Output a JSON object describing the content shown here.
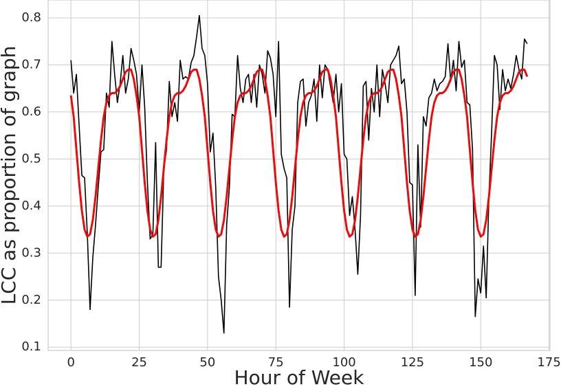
{
  "chart_data": {
    "type": "line",
    "x_label": "Hour of Week",
    "y_label": "LCC as proportion of graph",
    "x": [
      0,
      1,
      2,
      3,
      4,
      5,
      6,
      7,
      8,
      9,
      10,
      11,
      12,
      13,
      14,
      15,
      16,
      17,
      18,
      19,
      20,
      21,
      22,
      23,
      24,
      25,
      26,
      27,
      28,
      29,
      30,
      31,
      32,
      33,
      34,
      35,
      36,
      37,
      38,
      39,
      40,
      41,
      42,
      43,
      44,
      45,
      46,
      47,
      48,
      49,
      50,
      51,
      52,
      53,
      54,
      55,
      56,
      57,
      58,
      59,
      60,
      61,
      62,
      63,
      64,
      65,
      66,
      67,
      68,
      69,
      70,
      71,
      72,
      73,
      74,
      75,
      76,
      77,
      78,
      79,
      80,
      81,
      82,
      83,
      84,
      85,
      86,
      87,
      88,
      89,
      90,
      91,
      92,
      93,
      94,
      95,
      96,
      97,
      98,
      99,
      100,
      101,
      102,
      103,
      104,
      105,
      106,
      107,
      108,
      109,
      110,
      111,
      112,
      113,
      114,
      115,
      116,
      117,
      118,
      119,
      120,
      121,
      122,
      123,
      124,
      125,
      126,
      127,
      128,
      129,
      130,
      131,
      132,
      133,
      134,
      135,
      136,
      137,
      138,
      139,
      140,
      141,
      142,
      143,
      144,
      145,
      146,
      147,
      148,
      149,
      150,
      151,
      152,
      153,
      154,
      155,
      156,
      157,
      158,
      159,
      160,
      161,
      162,
      163,
      164,
      165,
      166,
      167
    ],
    "series": [
      {
        "color": "#000000",
        "width": 1.6,
        "values": [
          0.71,
          0.64,
          0.68,
          0.57,
          0.465,
          0.46,
          0.34,
          0.18,
          0.29,
          0.36,
          0.44,
          0.515,
          0.52,
          0.64,
          0.61,
          0.75,
          0.68,
          0.62,
          0.66,
          0.72,
          0.64,
          0.67,
          0.735,
          0.71,
          0.68,
          0.6,
          0.7,
          0.61,
          0.45,
          0.33,
          0.34,
          0.535,
          0.27,
          0.27,
          0.48,
          0.52,
          0.665,
          0.59,
          0.62,
          0.58,
          0.71,
          0.67,
          0.675,
          0.67,
          0.705,
          0.72,
          0.76,
          0.805,
          0.735,
          0.72,
          0.66,
          0.515,
          0.555,
          0.44,
          0.25,
          0.2,
          0.13,
          0.36,
          0.44,
          0.595,
          0.59,
          0.72,
          0.65,
          0.62,
          0.67,
          0.68,
          0.62,
          0.68,
          0.61,
          0.7,
          0.68,
          0.64,
          0.73,
          0.715,
          0.68,
          0.59,
          0.75,
          0.51,
          0.48,
          0.46,
          0.185,
          0.35,
          0.4,
          0.62,
          0.665,
          0.67,
          0.57,
          0.62,
          0.635,
          0.67,
          0.58,
          0.7,
          0.63,
          0.7,
          0.69,
          0.655,
          0.62,
          0.68,
          0.6,
          0.66,
          0.51,
          0.5,
          0.38,
          0.42,
          0.35,
          0.255,
          0.38,
          0.655,
          0.665,
          0.54,
          0.65,
          0.6,
          0.7,
          0.59,
          0.69,
          0.66,
          0.62,
          0.7,
          0.71,
          0.72,
          0.74,
          0.66,
          0.67,
          0.6,
          0.45,
          0.445,
          0.21,
          0.53,
          0.355,
          0.59,
          0.57,
          0.63,
          0.64,
          0.67,
          0.645,
          0.66,
          0.665,
          0.675,
          0.745,
          0.665,
          0.71,
          0.645,
          0.75,
          0.695,
          0.71,
          0.62,
          0.615,
          0.52,
          0.165,
          0.245,
          0.215,
          0.315,
          0.205,
          0.42,
          0.56,
          0.72,
          0.7,
          0.605,
          0.69,
          0.645,
          0.67,
          0.65,
          0.68,
          0.72,
          0.69,
          0.67,
          0.755,
          0.745
        ]
      },
      {
        "color": "#ee0a0a",
        "width": 3,
        "values": [
          0.635,
          0.59,
          0.52,
          0.45,
          0.39,
          0.35,
          0.335,
          0.34,
          0.37,
          0.42,
          0.48,
          0.54,
          0.59,
          0.62,
          0.635,
          0.64,
          0.64,
          0.645,
          0.655,
          0.67,
          0.685,
          0.69,
          0.69,
          0.67,
          0.635,
          0.59,
          0.52,
          0.45,
          0.39,
          0.35,
          0.335,
          0.34,
          0.37,
          0.42,
          0.48,
          0.54,
          0.59,
          0.62,
          0.635,
          0.64,
          0.64,
          0.645,
          0.655,
          0.67,
          0.685,
          0.69,
          0.69,
          0.67,
          0.635,
          0.59,
          0.52,
          0.45,
          0.39,
          0.35,
          0.335,
          0.34,
          0.37,
          0.42,
          0.48,
          0.54,
          0.59,
          0.62,
          0.635,
          0.64,
          0.64,
          0.645,
          0.655,
          0.67,
          0.685,
          0.69,
          0.69,
          0.67,
          0.635,
          0.59,
          0.52,
          0.45,
          0.39,
          0.35,
          0.335,
          0.34,
          0.37,
          0.42,
          0.48,
          0.54,
          0.59,
          0.62,
          0.635,
          0.64,
          0.64,
          0.645,
          0.655,
          0.67,
          0.685,
          0.69,
          0.69,
          0.67,
          0.635,
          0.59,
          0.52,
          0.45,
          0.39,
          0.35,
          0.335,
          0.34,
          0.37,
          0.42,
          0.48,
          0.54,
          0.59,
          0.62,
          0.635,
          0.64,
          0.64,
          0.645,
          0.655,
          0.67,
          0.685,
          0.69,
          0.69,
          0.67,
          0.635,
          0.59,
          0.52,
          0.45,
          0.39,
          0.35,
          0.335,
          0.34,
          0.37,
          0.42,
          0.48,
          0.54,
          0.59,
          0.62,
          0.635,
          0.64,
          0.64,
          0.645,
          0.655,
          0.67,
          0.685,
          0.69,
          0.69,
          0.67,
          0.635,
          0.59,
          0.52,
          0.45,
          0.39,
          0.35,
          0.335,
          0.34,
          0.37,
          0.42,
          0.48,
          0.54,
          0.59,
          0.62,
          0.635,
          0.64,
          0.64,
          0.645,
          0.655,
          0.67,
          0.685,
          0.69,
          0.69,
          0.675
        ]
      }
    ],
    "xlim": [
      -8.35,
      175.35
    ],
    "ylim": [
      0.093,
      0.838
    ],
    "xticks": [
      0,
      25,
      50,
      75,
      100,
      125,
      150,
      175
    ],
    "yticks": [
      0.1,
      0.2,
      0.3,
      0.4,
      0.5,
      0.6,
      0.7,
      0.8
    ],
    "grid": true
  }
}
